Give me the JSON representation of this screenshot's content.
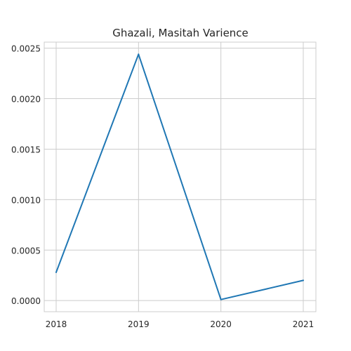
{
  "chart_data": {
    "type": "line",
    "title": "Ghazali, Masitah Varience",
    "xlabel": "",
    "ylabel": "",
    "x": [
      "2018",
      "2019",
      "2020",
      "2021"
    ],
    "series": [
      {
        "values": [
          0.00028,
          0.00244,
          1e-05,
          0.0002
        ]
      }
    ],
    "yticks": [
      "0.0000",
      "0.0005",
      "0.0010",
      "0.0015",
      "0.0020",
      "0.0025"
    ],
    "ylim": [
      -0.00011,
      0.00256
    ],
    "grid": true,
    "colors": {
      "line": "#1f77b4",
      "grid": "#cccccc",
      "frame": "#cccccc",
      "text": "#262626"
    }
  }
}
